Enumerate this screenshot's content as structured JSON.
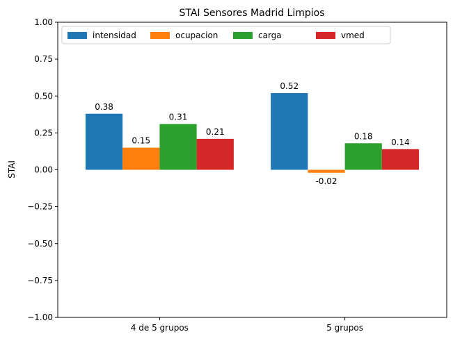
{
  "chart_data": {
    "type": "bar",
    "title": "STAI Sensores Madrid Limpios",
    "xlabel": "",
    "ylabel": "STAI",
    "ylim": [
      -1.0,
      1.0
    ],
    "yticks": [
      "−1.00",
      "−0.75",
      "−0.50",
      "−0.25",
      "0.00",
      "0.25",
      "0.50",
      "0.75",
      "1.00"
    ],
    "ytick_values": [
      -1.0,
      -0.75,
      -0.5,
      -0.25,
      0.0,
      0.25,
      0.5,
      0.75,
      1.0
    ],
    "categories": [
      "4 de 5 grupos",
      "5 grupos"
    ],
    "series": [
      {
        "name": "intensidad",
        "color": "#1f77b4",
        "values": [
          0.38,
          0.52
        ],
        "labels": [
          "0.38",
          "0.52"
        ]
      },
      {
        "name": "ocupacion",
        "color": "#ff7f0e",
        "values": [
          0.15,
          -0.02
        ],
        "labels": [
          "0.15",
          "-0.02"
        ]
      },
      {
        "name": "carga",
        "color": "#2ca02c",
        "values": [
          0.31,
          0.18
        ],
        "labels": [
          "0.31",
          "0.18"
        ]
      },
      {
        "name": "vmed",
        "color": "#d62728",
        "values": [
          0.21,
          0.14
        ],
        "labels": [
          "0.21",
          "0.14"
        ]
      }
    ],
    "legend": "top-left",
    "grid": false
  }
}
